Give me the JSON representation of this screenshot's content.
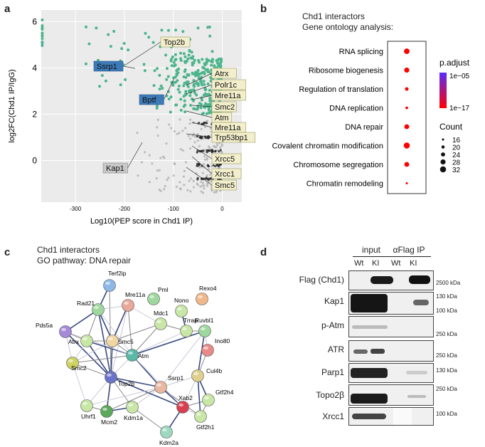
{
  "panels": {
    "a": "a",
    "b": "b",
    "c": "c",
    "d": "d"
  },
  "panel_a": {
    "chart_data": {
      "type": "scatter",
      "xlabel": "Log10(PEP score in Chd1 IP)",
      "ylabel": "log2FC(Chd1 IP/IgG)",
      "xlim": [
        -370,
        40
      ],
      "ylim": [
        -1.8,
        6.5
      ],
      "xticks": [
        "-300",
        "-200",
        "-100",
        "0"
      ],
      "yticks": [
        "0",
        "2",
        "4",
        "6"
      ],
      "xtick_values": [
        -300,
        -200,
        -100,
        0
      ],
      "ytick_values": [
        0,
        2,
        4,
        6
      ],
      "colors": {
        "enriched": "#4cb58c",
        "background": "#aaaaaa",
        "dark": "#222222"
      },
      "labels": [
        {
          "text": "Top2b",
          "style": "yellow"
        },
        {
          "text": "Ssrp1",
          "style": "blue"
        },
        {
          "text": "Atrx",
          "style": "yellow"
        },
        {
          "text": "Polr1c",
          "style": "yellow"
        },
        {
          "text": "Bptf",
          "style": "blue"
        },
        {
          "text": "Mre11a",
          "style": "yellow"
        },
        {
          "text": "Smc2",
          "style": "yellow"
        },
        {
          "text": "Atm",
          "style": "yellow"
        },
        {
          "text": "Mre11a",
          "style": "yellow"
        },
        {
          "text": "Trp53bp1",
          "style": "yellow"
        },
        {
          "text": "Kap1",
          "style": "gray"
        },
        {
          "text": "Xrcc5",
          "style": "yellow"
        },
        {
          "text": "Xrcc1",
          "style": "yellow"
        },
        {
          "text": "Smc5",
          "style": "yellow"
        }
      ]
    }
  },
  "panel_b": {
    "title_line1": "Chd1 interactors",
    "title_line2": "Gene ontology analysis:",
    "chart_data": {
      "type": "scatter",
      "categories": [
        "RNA splicing",
        "Ribosome biogenesis",
        "Regulation of translation",
        "DNA replication",
        "DNA repair",
        "Covalent chromatin modification",
        "Chromosome segregation",
        "Chromatin remodeling"
      ],
      "count": [
        30,
        28,
        22,
        18,
        27,
        32,
        27,
        16
      ],
      "legend_color_title": "p.adjust",
      "legend_color_high": "1e−05",
      "legend_color_low": "1e−17",
      "legend_size_title": "Count",
      "legend_size_values": [
        "16",
        "20",
        "24",
        "28",
        "32"
      ],
      "size_values": [
        16,
        20,
        24,
        28,
        32
      ],
      "color_low": "#ff0000",
      "color_high": "#5a2bff"
    }
  },
  "panel_c": {
    "title_line1": "Chd1 interactors",
    "title_line2": "GO pathway: DNA repair",
    "nodes": [
      {
        "name": "Terf2ip",
        "color": "#8fb8e8"
      },
      {
        "name": "Pml",
        "color": "#9ed89e"
      },
      {
        "name": "Rexo4",
        "color": "#f2b88a"
      },
      {
        "name": "Rad21",
        "color": "#9ed89e"
      },
      {
        "name": "Mre11a",
        "color": "#e8a89a"
      },
      {
        "name": "Nono",
        "color": "#c8e6a6"
      },
      {
        "name": "Pds5a",
        "color": "#a48ad8"
      },
      {
        "name": "Mdc1",
        "color": "#c8e6a6"
      },
      {
        "name": "Trrap",
        "color": "#c8e6a6"
      },
      {
        "name": "Ruvbl1",
        "color": "#9ed89e"
      },
      {
        "name": "Atrx",
        "color": "#c8e6a6"
      },
      {
        "name": "Smc5",
        "color": "#f0d6a0"
      },
      {
        "name": "Ino80",
        "color": "#e88a8a"
      },
      {
        "name": "Smc2",
        "color": "#cdd264"
      },
      {
        "name": "Atm",
        "color": "#5ab8a8"
      },
      {
        "name": "Top2b",
        "color": "#6a74c8"
      },
      {
        "name": "Ssrp1",
        "color": "#e8b8a0"
      },
      {
        "name": "Cul4b",
        "color": "#e0d090"
      },
      {
        "name": "Gtf2h4",
        "color": "#c8e6a6"
      },
      {
        "name": "Uhrf1",
        "color": "#c8e6a6"
      },
      {
        "name": "Mcm2",
        "color": "#5aaa5a"
      },
      {
        "name": "Kdm1a",
        "color": "#c8e6a6"
      },
      {
        "name": "Xab2",
        "color": "#d84050"
      },
      {
        "name": "Gtf2h1",
        "color": "#c8e6a6"
      },
      {
        "name": "Kdm2a",
        "color": "#9ed8c0"
      }
    ]
  },
  "panel_d": {
    "header_input": "input",
    "header_ip": "αFlag IP",
    "col_labels": [
      "Wt",
      "KI",
      "Wt",
      "KI"
    ],
    "rows": [
      {
        "label": "Flag (Chd1)",
        "mw": [
          "2500 kDa"
        ]
      },
      {
        "label": "Kap1",
        "mw": [
          "130 kDa",
          "100 kDa"
        ]
      },
      {
        "label": "p-Atm",
        "mw": [
          "250 kDa"
        ]
      },
      {
        "label": "ATR",
        "mw": [
          "250 kDa"
        ]
      },
      {
        "label": "Parp1",
        "mw": [
          "130 kDa"
        ]
      },
      {
        "label": "Topo2β",
        "mw": [
          "250 kDa"
        ]
      },
      {
        "label": "Xrcc1",
        "mw": [
          "100 kDa"
        ]
      }
    ]
  }
}
